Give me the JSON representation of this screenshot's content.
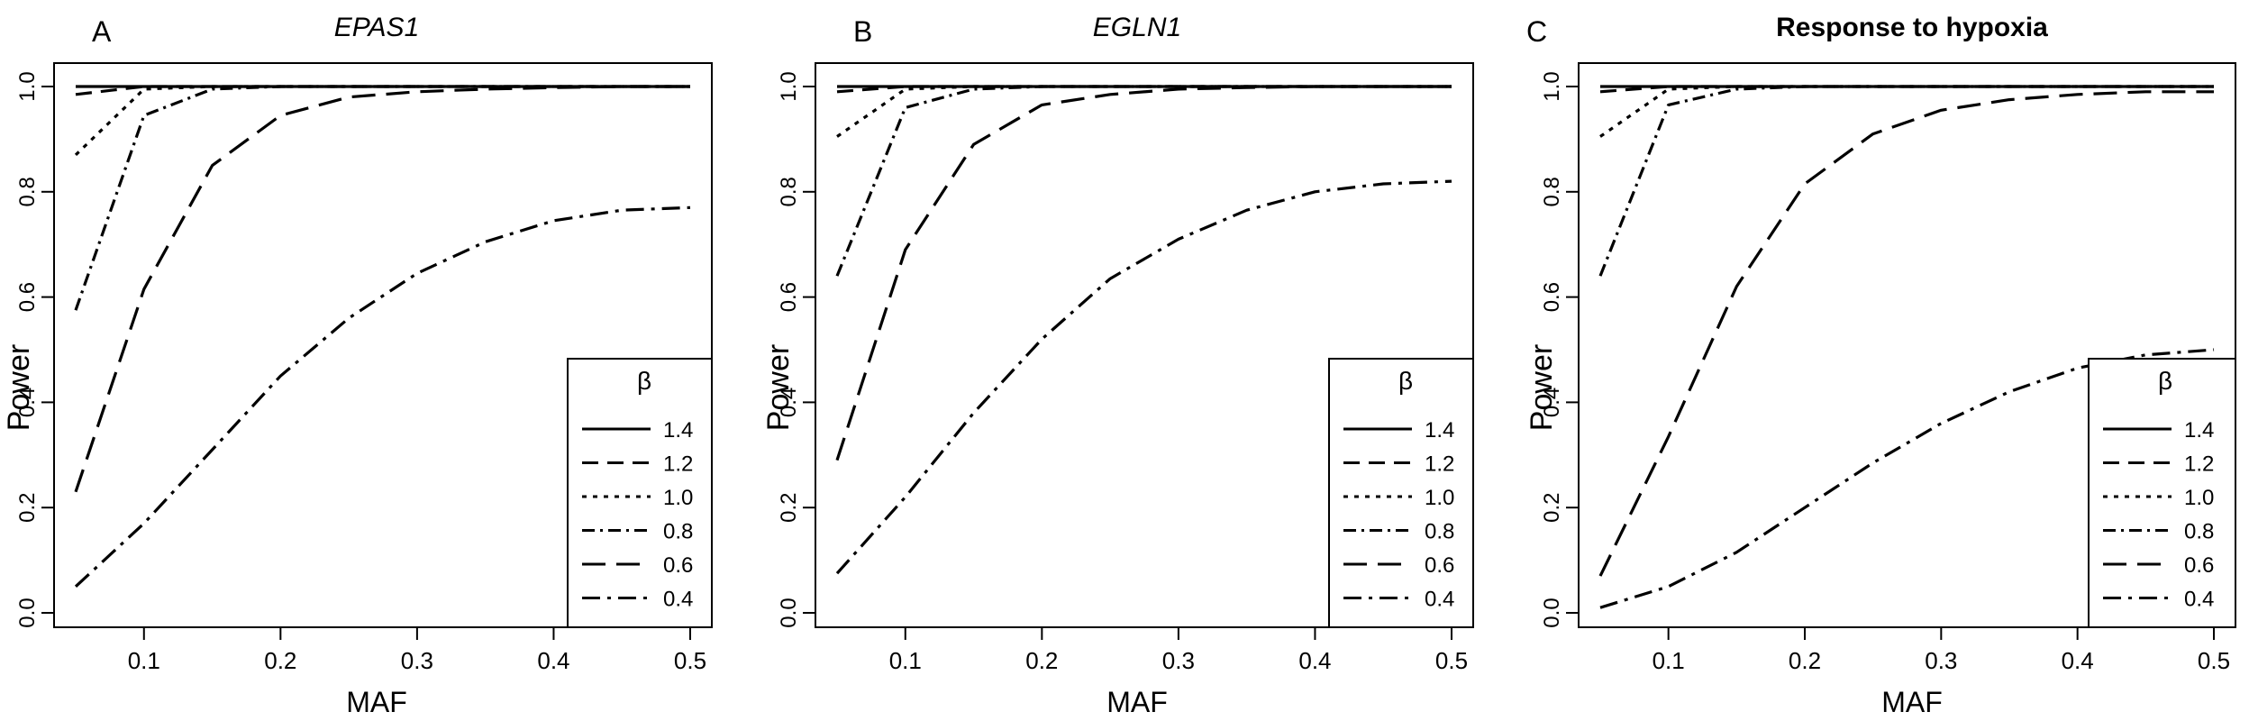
{
  "chart_data": [
    {
      "type": "line",
      "panel_letter": "A",
      "title": "EPAS1",
      "title_style": "italic",
      "xlabel": "MAF",
      "ylabel": "Power",
      "xlim": [
        0.05,
        0.5
      ],
      "ylim": [
        0.0,
        1.0
      ],
      "x_ticks": [
        "0.1",
        "0.2",
        "0.3",
        "0.4",
        "0.5"
      ],
      "y_ticks": [
        "0.0",
        "0.2",
        "0.4",
        "0.6",
        "0.8",
        "1.0"
      ],
      "grid": false,
      "legend_title": "β",
      "legend_position": "bottom-right",
      "x": [
        0.05,
        0.1,
        0.15,
        0.2,
        0.25,
        0.3,
        0.35,
        0.4,
        0.45,
        0.5
      ],
      "series": [
        {
          "name": "1.4",
          "values": [
            1.0,
            1.0,
            1.0,
            1.0,
            1.0,
            1.0,
            1.0,
            1.0,
            1.0,
            1.0
          ]
        },
        {
          "name": "1.2",
          "values": [
            0.985,
            1.0,
            1.0,
            1.0,
            1.0,
            1.0,
            1.0,
            1.0,
            1.0,
            1.0
          ]
        },
        {
          "name": "1.0",
          "values": [
            0.87,
            0.995,
            1.0,
            1.0,
            1.0,
            1.0,
            1.0,
            1.0,
            1.0,
            1.0
          ]
        },
        {
          "name": "0.8",
          "values": [
            0.575,
            0.945,
            0.995,
            1.0,
            1.0,
            1.0,
            1.0,
            1.0,
            1.0,
            1.0
          ]
        },
        {
          "name": "0.6",
          "values": [
            0.23,
            0.615,
            0.85,
            0.945,
            0.98,
            0.99,
            0.995,
            0.998,
            1.0,
            1.0
          ]
        },
        {
          "name": "0.4",
          "values": [
            0.05,
            0.17,
            0.31,
            0.45,
            0.56,
            0.645,
            0.705,
            0.745,
            0.765,
            0.77
          ]
        }
      ]
    },
    {
      "type": "line",
      "panel_letter": "B",
      "title": "EGLN1",
      "title_style": "italic",
      "xlabel": "MAF",
      "ylabel": "Power",
      "xlim": [
        0.05,
        0.5
      ],
      "ylim": [
        0.0,
        1.0
      ],
      "x_ticks": [
        "0.1",
        "0.2",
        "0.3",
        "0.4",
        "0.5"
      ],
      "y_ticks": [
        "0.0",
        "0.2",
        "0.4",
        "0.6",
        "0.8",
        "1.0"
      ],
      "grid": false,
      "legend_title": "β",
      "legend_position": "bottom-right",
      "x": [
        0.05,
        0.1,
        0.15,
        0.2,
        0.25,
        0.3,
        0.35,
        0.4,
        0.45,
        0.5
      ],
      "series": [
        {
          "name": "1.4",
          "values": [
            1.0,
            1.0,
            1.0,
            1.0,
            1.0,
            1.0,
            1.0,
            1.0,
            1.0,
            1.0
          ]
        },
        {
          "name": "1.2",
          "values": [
            0.99,
            1.0,
            1.0,
            1.0,
            1.0,
            1.0,
            1.0,
            1.0,
            1.0,
            1.0
          ]
        },
        {
          "name": "1.0",
          "values": [
            0.905,
            0.995,
            1.0,
            1.0,
            1.0,
            1.0,
            1.0,
            1.0,
            1.0,
            1.0
          ]
        },
        {
          "name": "0.8",
          "values": [
            0.64,
            0.96,
            0.995,
            1.0,
            1.0,
            1.0,
            1.0,
            1.0,
            1.0,
            1.0
          ]
        },
        {
          "name": "0.6",
          "values": [
            0.29,
            0.69,
            0.89,
            0.965,
            0.985,
            0.995,
            0.998,
            1.0,
            1.0,
            1.0
          ]
        },
        {
          "name": "0.4",
          "values": [
            0.075,
            0.22,
            0.38,
            0.52,
            0.635,
            0.71,
            0.765,
            0.8,
            0.815,
            0.82
          ]
        }
      ]
    },
    {
      "type": "line",
      "panel_letter": "C",
      "title": "Response to hypoxia",
      "title_style": "bold",
      "xlabel": "MAF",
      "ylabel": "Power",
      "xlim": [
        0.05,
        0.5
      ],
      "ylim": [
        0.0,
        1.0
      ],
      "x_ticks": [
        "0.1",
        "0.2",
        "0.3",
        "0.4",
        "0.5"
      ],
      "y_ticks": [
        "0.0",
        "0.2",
        "0.4",
        "0.6",
        "0.8",
        "1.0"
      ],
      "grid": false,
      "legend_title": "β",
      "legend_position": "bottom-right",
      "x": [
        0.05,
        0.1,
        0.15,
        0.2,
        0.25,
        0.3,
        0.35,
        0.4,
        0.45,
        0.5
      ],
      "series": [
        {
          "name": "1.4",
          "values": [
            1.0,
            1.0,
            1.0,
            1.0,
            1.0,
            1.0,
            1.0,
            1.0,
            1.0,
            1.0
          ]
        },
        {
          "name": "1.2",
          "values": [
            0.99,
            1.0,
            1.0,
            1.0,
            1.0,
            1.0,
            1.0,
            1.0,
            1.0,
            1.0
          ]
        },
        {
          "name": "1.0",
          "values": [
            0.905,
            0.995,
            1.0,
            1.0,
            1.0,
            1.0,
            1.0,
            1.0,
            1.0,
            1.0
          ]
        },
        {
          "name": "0.8",
          "values": [
            0.64,
            0.965,
            0.995,
            1.0,
            1.0,
            1.0,
            1.0,
            1.0,
            1.0,
            1.0
          ]
        },
        {
          "name": "0.6",
          "values": [
            0.07,
            0.335,
            0.62,
            0.815,
            0.91,
            0.955,
            0.975,
            0.985,
            0.99,
            0.99
          ]
        },
        {
          "name": "0.4",
          "values": [
            0.01,
            0.05,
            0.115,
            0.2,
            0.285,
            0.36,
            0.42,
            0.465,
            0.49,
            0.5
          ]
        }
      ]
    }
  ]
}
